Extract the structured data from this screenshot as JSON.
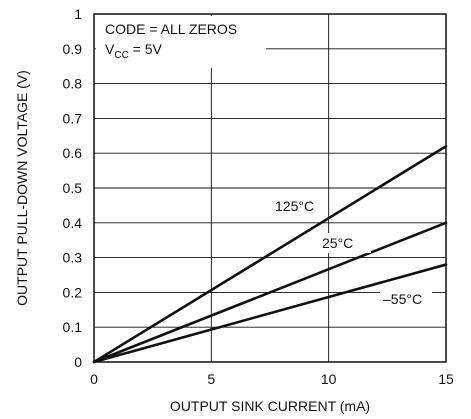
{
  "chart_data": {
    "type": "line",
    "title": "",
    "xlabel": "OUTPUT SINK CURRENT (mA)",
    "ylabel": "OUTPUT PULL-DOWN VOLTAGE (V)",
    "xlim": [
      0,
      15
    ],
    "ylim": [
      0,
      1
    ],
    "x_ticks": [
      "0",
      "5",
      "10",
      "15"
    ],
    "y_ticks": [
      "0",
      "0.1",
      "0.2",
      "0.3",
      "0.4",
      "0.5",
      "0.6",
      "0.7",
      "0.8",
      "0.9",
      "1"
    ],
    "grid": true,
    "annotation": {
      "line1": "CODE = ALL ZEROS",
      "line2_prefix": "V",
      "line2_subscript": "CC",
      "line2_suffix": " = 5V"
    },
    "series": [
      {
        "name": "125°C",
        "x": [
          0,
          15
        ],
        "y": [
          0,
          0.62
        ]
      },
      {
        "name": "25°C",
        "x": [
          0,
          15
        ],
        "y": [
          0,
          0.4
        ]
      },
      {
        "name": "–55°C",
        "x": [
          0,
          15
        ],
        "y": [
          0,
          0.28
        ]
      }
    ],
    "line_color": "#111111",
    "grid_color": "#111111"
  }
}
